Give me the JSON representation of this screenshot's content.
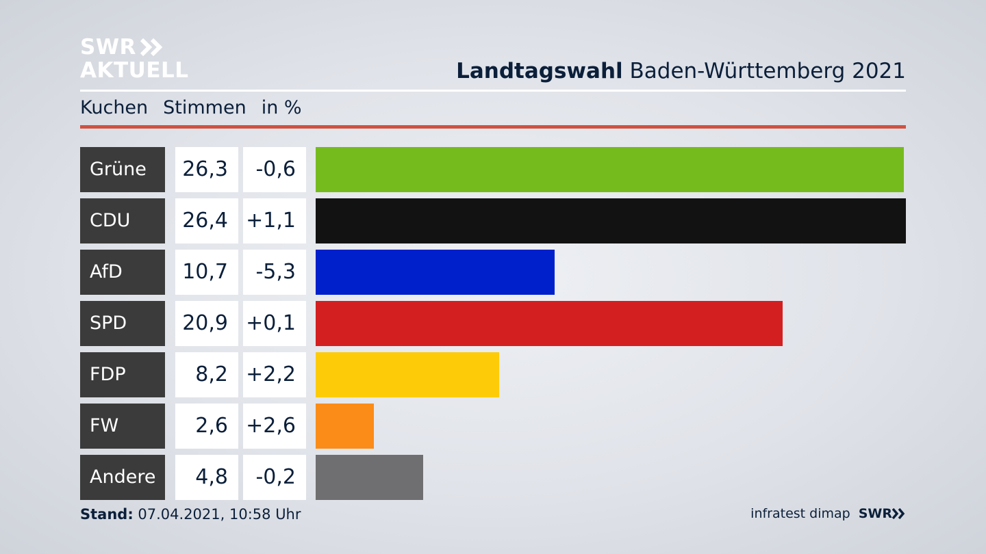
{
  "brand": {
    "line1": "SWR",
    "line2": "AKTUELL"
  },
  "header": {
    "title_bold": "Landtagswahl",
    "title_rest": "Baden-Württemberg 2021"
  },
  "subheader": {
    "col1": "Kuchen",
    "col2": "Stimmen",
    "col3": "in %"
  },
  "colors": {
    "accent_red": "#d0513f",
    "party_box": "#3b3b3b"
  },
  "chart_data": {
    "type": "bar",
    "orientation": "horizontal",
    "categories": [
      "Grüne",
      "CDU",
      "AfD",
      "SPD",
      "FDP",
      "FW",
      "Andere"
    ],
    "values": [
      26.3,
      26.4,
      10.7,
      20.9,
      8.2,
      2.6,
      4.8
    ],
    "labels": [
      "26,3",
      "26,4",
      "10,7",
      "20,9",
      "8,2",
      "2,6",
      "4,8"
    ],
    "changes": [
      "-0,6",
      "+1,1",
      "-5,3",
      "+0,1",
      "+2,2",
      "+2,6",
      "-0,2"
    ],
    "colors": [
      "#76bb1e",
      "#121212",
      "#0020cc",
      "#d41f20",
      "#fdcb08",
      "#fb8c17",
      "#6f6f71"
    ],
    "xlim": [
      0,
      26.4
    ]
  },
  "footer": {
    "stand_label": "Stand:",
    "stand_value": "07.04.2021, 10:58 Uhr",
    "source": "infratest dimap",
    "brand": "SWR"
  }
}
